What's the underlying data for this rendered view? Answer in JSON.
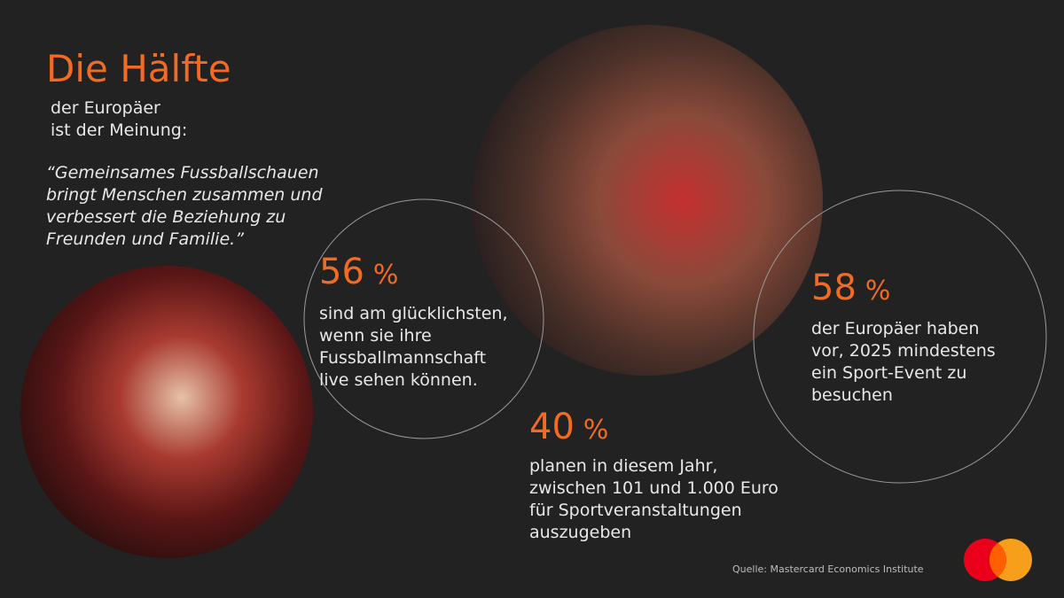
{
  "header": {
    "title": "Die Hälfte",
    "subtitle": [
      "der Europäer",
      "ist der Meinung:"
    ]
  },
  "quote": [
    "“Gemeinsames Fussballschauen",
    "bringt Menschen zusammen und",
    "verbessert die Beziehung zu",
    "Freunden und Familie.”"
  ],
  "stats": [
    {
      "value": "56",
      "unit": "%",
      "text": [
        "sind am glücklichsten,",
        "wenn sie ihre",
        "Fussballmannschaft",
        "live sehen können."
      ]
    },
    {
      "value": "58",
      "unit": "%",
      "text": [
        "der Europäer haben",
        "vor, 2025 mindestens",
        "ein Sport-Event zu",
        "besuchen"
      ]
    },
    {
      "value": "40",
      "unit": "%",
      "text": [
        "planen in diesem Jahr,",
        "zwischen 101 und 1.000 Euro",
        "für Sportveranstaltungen",
        "auszugeben"
      ]
    }
  ],
  "source": "Quelle: Mastercard Economics Institute"
}
